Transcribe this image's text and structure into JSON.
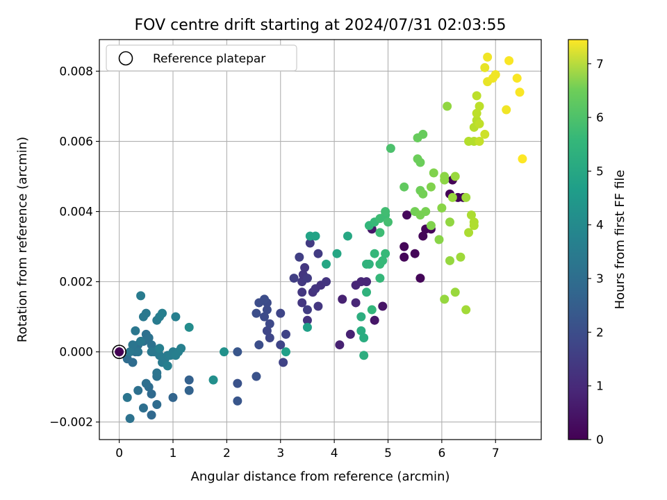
{
  "chart_data": {
    "type": "scatter",
    "title": "FOV centre drift starting at 2024/07/31 02:03:55",
    "xlabel": "Angular distance from reference (arcmin)",
    "ylabel": "Rotation from reference (arcmin)",
    "xlim": [
      -0.37,
      7.85
    ],
    "ylim": [
      -0.0025,
      0.0089
    ],
    "xticks": [
      0,
      1,
      2,
      3,
      4,
      5,
      6,
      7
    ],
    "xtick_labels": [
      "0",
      "1",
      "2",
      "3",
      "4",
      "5",
      "6",
      "7"
    ],
    "yticks": [
      -0.002,
      0.0,
      0.002,
      0.004,
      0.006,
      0.008
    ],
    "ytick_labels": [
      "−0.002",
      "0.000",
      "0.002",
      "0.004",
      "0.006",
      "0.008"
    ],
    "grid": true,
    "legend": {
      "label": "Reference platepar",
      "position": "top-left"
    },
    "reference_point": {
      "x": 0.0,
      "y": 0.0
    },
    "colorbar": {
      "label": "Hours from first FF file",
      "colormap": "viridis",
      "range": [
        0,
        7.45
      ],
      "ticks": [
        0,
        1,
        2,
        3,
        4,
        5,
        6,
        7
      ],
      "tick_labels": [
        "0",
        "1",
        "2",
        "3",
        "4",
        "5",
        "6",
        "7"
      ]
    },
    "points": [
      [
        0.0,
        0.0,
        0.0
      ],
      [
        5.3,
        0.003,
        0.1
      ],
      [
        5.3,
        0.0027,
        0.1
      ],
      [
        5.5,
        0.0028,
        0.1
      ],
      [
        5.6,
        0.0021,
        0.1
      ],
      [
        5.65,
        0.0033,
        0.1
      ],
      [
        5.7,
        0.0035,
        0.1
      ],
      [
        5.8,
        0.0035,
        0.1
      ],
      [
        5.35,
        0.0039,
        0.15
      ],
      [
        6.15,
        0.0045,
        0.05
      ],
      [
        6.2,
        0.0049,
        0.05
      ],
      [
        6.3,
        0.0044,
        0.05
      ],
      [
        6.4,
        0.0044,
        0.05
      ],
      [
        4.9,
        0.0013,
        0.4
      ],
      [
        4.75,
        0.0009,
        0.45
      ],
      [
        4.7,
        0.0035,
        0.45
      ],
      [
        4.1,
        0.0002,
        0.7
      ],
      [
        4.3,
        0.0005,
        0.7
      ],
      [
        4.15,
        0.0015,
        0.7
      ],
      [
        4.4,
        0.0014,
        0.8
      ],
      [
        4.4,
        0.0019,
        0.8
      ],
      [
        4.5,
        0.002,
        0.8
      ],
      [
        4.6,
        0.002,
        0.8
      ],
      [
        3.5,
        0.0009,
        1.1
      ],
      [
        3.6,
        0.0017,
        1.1
      ],
      [
        3.65,
        0.0018,
        1.15
      ],
      [
        3.7,
        0.0013,
        1.2
      ],
      [
        3.75,
        0.0019,
        1.1
      ],
      [
        3.85,
        0.002,
        1.15
      ],
      [
        3.4,
        0.0014,
        1.2
      ],
      [
        3.4,
        0.0017,
        1.2
      ],
      [
        3.4,
        0.002,
        1.25
      ],
      [
        3.42,
        0.0022,
        1.2
      ],
      [
        3.45,
        0.0024,
        1.2
      ],
      [
        3.5,
        0.0021,
        1.3
      ],
      [
        3.5,
        0.0012,
        1.35
      ],
      [
        3.55,
        0.0031,
        1.3
      ],
      [
        3.7,
        0.0028,
        1.3
      ],
      [
        3.35,
        0.0027,
        1.4
      ],
      [
        3.25,
        0.0021,
        1.4
      ],
      [
        3.1,
        0.0005,
        1.5
      ],
      [
        3.05,
        -0.0003,
        1.5
      ],
      [
        3.0,
        0.0011,
        1.55
      ],
      [
        3.0,
        0.0002,
        1.55
      ],
      [
        2.8,
        0.0004,
        1.6
      ],
      [
        2.75,
        0.0006,
        1.6
      ],
      [
        2.8,
        0.0008,
        1.65
      ],
      [
        2.75,
        0.0012,
        1.7
      ],
      [
        2.7,
        0.001,
        1.7
      ],
      [
        2.75,
        0.0014,
        1.7
      ],
      [
        2.7,
        0.0015,
        1.75
      ],
      [
        2.6,
        0.0014,
        1.75
      ],
      [
        2.55,
        0.0011,
        1.8
      ],
      [
        2.6,
        0.0002,
        1.8
      ],
      [
        2.55,
        -0.0007,
        1.9
      ],
      [
        2.2,
        -0.0009,
        1.9
      ],
      [
        2.2,
        -0.0014,
        2.0
      ],
      [
        2.2,
        0.0,
        2.0
      ],
      [
        1.3,
        -0.0008,
        2.3
      ],
      [
        1.3,
        -0.0011,
        2.35
      ],
      [
        1.0,
        -0.0013,
        2.4
      ],
      [
        0.6,
        -0.0018,
        2.5
      ],
      [
        0.6,
        -0.0012,
        2.55
      ],
      [
        0.7,
        -0.0015,
        2.6
      ],
      [
        0.45,
        -0.0016,
        2.7
      ],
      [
        0.35,
        -0.0011,
        2.75
      ],
      [
        0.55,
        -0.001,
        2.65
      ],
      [
        0.5,
        -0.0009,
        2.7
      ],
      [
        0.7,
        -0.0007,
        2.8
      ],
      [
        0.7,
        -0.0006,
        2.85
      ],
      [
        0.2,
        -0.0019,
        2.8
      ],
      [
        0.15,
        -0.0013,
        2.9
      ],
      [
        0.15,
        -0.0002,
        2.6
      ],
      [
        0.25,
        -0.0003,
        2.6
      ],
      [
        0.3,
        0.0,
        2.65
      ],
      [
        0.35,
        0.0002,
        2.7
      ],
      [
        0.4,
        0.0003,
        2.7
      ],
      [
        0.45,
        0.0003,
        2.7
      ],
      [
        0.5,
        0.0005,
        2.75
      ],
      [
        0.55,
        0.0004,
        2.8
      ],
      [
        0.6,
        0.0002,
        2.8
      ],
      [
        0.35,
        0.0,
        2.9
      ],
      [
        0.25,
        0.0002,
        2.9
      ],
      [
        0.2,
        0.0,
        2.95
      ],
      [
        0.3,
        0.0006,
        2.95
      ],
      [
        0.4,
        0.0003,
        3.0
      ],
      [
        0.6,
        0.0,
        3.0
      ],
      [
        0.65,
        0.0,
        3.0
      ],
      [
        0.75,
        -0.0001,
        3.05
      ],
      [
        0.8,
        -0.0003,
        3.05
      ],
      [
        0.85,
        -0.0002,
        3.1
      ],
      [
        0.9,
        -0.0001,
        3.1
      ],
      [
        0.95,
        -0.0001,
        3.15
      ],
      [
        1.0,
        0.0,
        3.15
      ],
      [
        1.05,
        -0.0001,
        3.2
      ],
      [
        1.1,
        0.0,
        3.2
      ],
      [
        1.15,
        0.0001,
        3.25
      ],
      [
        0.75,
        0.0001,
        3.2
      ],
      [
        0.9,
        -0.0004,
        3.2
      ],
      [
        0.45,
        0.001,
        3.0
      ],
      [
        0.5,
        0.0011,
        3.0
      ],
      [
        0.4,
        0.0016,
        3.1
      ],
      [
        0.7,
        0.0009,
        3.1
      ],
      [
        0.75,
        0.001,
        3.15
      ],
      [
        0.8,
        0.0011,
        3.2
      ],
      [
        1.05,
        0.001,
        3.2
      ],
      [
        1.3,
        0.0007,
        3.6
      ],
      [
        1.75,
        -0.0008,
        3.7
      ],
      [
        1.95,
        0.0,
        3.75
      ],
      [
        3.1,
        0.0,
        4.2
      ],
      [
        3.5,
        0.0007,
        4.2
      ],
      [
        3.55,
        0.0033,
        4.3
      ],
      [
        3.65,
        0.0033,
        4.3
      ],
      [
        3.85,
        0.0025,
        4.4
      ],
      [
        4.05,
        0.0028,
        4.4
      ],
      [
        4.25,
        0.0033,
        4.45
      ],
      [
        4.5,
        0.0006,
        4.6
      ],
      [
        4.55,
        0.0004,
        4.6
      ],
      [
        4.55,
        -0.0001,
        4.65
      ],
      [
        4.5,
        0.001,
        4.65
      ],
      [
        4.6,
        0.0017,
        4.8
      ],
      [
        4.6,
        0.0025,
        4.8
      ],
      [
        4.65,
        0.0025,
        4.8
      ],
      [
        4.65,
        0.0036,
        4.9
      ],
      [
        4.7,
        0.0012,
        4.9
      ],
      [
        4.75,
        0.0028,
        4.95
      ],
      [
        4.85,
        0.0021,
        4.95
      ],
      [
        4.85,
        0.0025,
        5.0
      ],
      [
        4.9,
        0.0026,
        5.0
      ],
      [
        4.95,
        0.0028,
        5.0
      ],
      [
        4.75,
        0.0037,
        5.0
      ],
      [
        4.85,
        0.0034,
        5.1
      ],
      [
        4.85,
        0.0038,
        5.1
      ],
      [
        4.95,
        0.0039,
        5.1
      ],
      [
        4.95,
        0.004,
        5.15
      ],
      [
        5.0,
        0.0037,
        5.2
      ],
      [
        5.05,
        0.0058,
        5.3
      ],
      [
        5.3,
        0.0047,
        5.6
      ],
      [
        5.55,
        0.0061,
        5.7
      ],
      [
        5.65,
        0.0062,
        5.7
      ],
      [
        5.55,
        0.0055,
        5.75
      ],
      [
        5.6,
        0.0054,
        5.75
      ],
      [
        5.6,
        0.0046,
        5.8
      ],
      [
        5.65,
        0.0045,
        5.85
      ],
      [
        5.5,
        0.004,
        5.85
      ],
      [
        5.6,
        0.0039,
        5.9
      ],
      [
        5.7,
        0.004,
        5.9
      ],
      [
        5.8,
        0.0047,
        6.0
      ],
      [
        5.85,
        0.0051,
        6.0
      ],
      [
        5.8,
        0.0036,
        6.0
      ],
      [
        5.95,
        0.0032,
        6.1
      ],
      [
        6.0,
        0.0041,
        6.1
      ],
      [
        6.05,
        0.005,
        6.15
      ],
      [
        6.05,
        0.0049,
        6.15
      ],
      [
        6.1,
        0.007,
        6.2
      ],
      [
        6.15,
        0.0037,
        6.2
      ],
      [
        6.15,
        0.0026,
        6.25
      ],
      [
        6.05,
        0.0015,
        6.25
      ],
      [
        6.25,
        0.005,
        6.3
      ],
      [
        6.25,
        0.0017,
        6.3
      ],
      [
        6.35,
        0.0027,
        6.35
      ],
      [
        6.45,
        0.0044,
        6.35
      ],
      [
        6.45,
        0.0012,
        6.4
      ],
      [
        6.2,
        0.0044,
        6.3
      ],
      [
        6.5,
        0.0034,
        6.5
      ],
      [
        6.55,
        0.0039,
        6.5
      ],
      [
        6.6,
        0.0036,
        6.55
      ],
      [
        6.6,
        0.0037,
        6.55
      ],
      [
        6.5,
        0.006,
        6.6
      ],
      [
        6.6,
        0.006,
        6.6
      ],
      [
        6.6,
        0.0064,
        6.65
      ],
      [
        6.65,
        0.0066,
        6.65
      ],
      [
        6.65,
        0.0068,
        6.7
      ],
      [
        6.7,
        0.007,
        6.7
      ],
      [
        6.65,
        0.0073,
        6.7
      ],
      [
        6.7,
        0.0065,
        6.75
      ],
      [
        6.7,
        0.006,
        6.8
      ],
      [
        6.8,
        0.0062,
        6.9
      ],
      [
        6.8,
        0.0081,
        7.2
      ],
      [
        6.85,
        0.0084,
        7.3
      ],
      [
        6.85,
        0.0077,
        7.2
      ],
      [
        6.95,
        0.0078,
        7.3
      ],
      [
        7.0,
        0.0079,
        7.3
      ],
      [
        7.2,
        0.0069,
        7.3
      ],
      [
        7.25,
        0.0083,
        7.4
      ],
      [
        7.4,
        0.0078,
        7.4
      ],
      [
        7.45,
        0.0074,
        7.4
      ],
      [
        7.5,
        0.0055,
        7.45
      ]
    ]
  }
}
